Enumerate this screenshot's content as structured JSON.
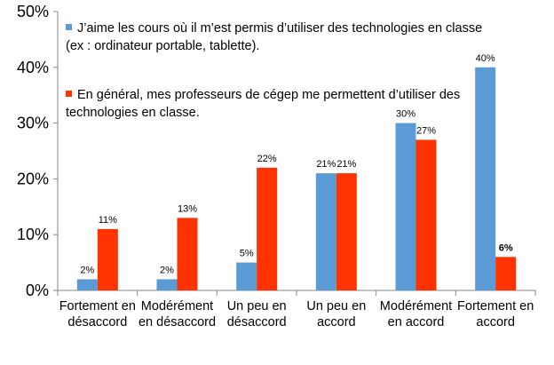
{
  "chart_data": {
    "type": "bar",
    "categories": [
      [
        "Fortement en",
        "désaccord"
      ],
      [
        "Modérément",
        "en désaccord"
      ],
      [
        "Un peu en",
        "désaccord"
      ],
      [
        "Un peu en",
        "accord"
      ],
      [
        "Modérément",
        "en accord"
      ],
      [
        "Fortement en",
        "accord"
      ]
    ],
    "series": [
      {
        "name": "J’aime les cours où il m’est permis d’utiliser des technologies en classe (ex : ordinateur portable, tablette).",
        "values": [
          2,
          2,
          5,
          21,
          30,
          40
        ],
        "labels": [
          "2%",
          "2%",
          "5%",
          "21%",
          "30%",
          "40%"
        ],
        "color": "#5B9BD5"
      },
      {
        "name": "En général, mes professeurs de cégep me permettent d’utiliser des technologies en classe.",
        "values": [
          11,
          13,
          22,
          21,
          27,
          6
        ],
        "labels": [
          "11%",
          "13%",
          "22%",
          "21%",
          "27%",
          "6%"
        ],
        "color": "#FF3300"
      }
    ],
    "yticks": [
      "0%",
      "10%",
      "20%",
      "30%",
      "40%",
      "50%"
    ],
    "ylim": [
      0,
      50
    ],
    "title": "",
    "xlabel": "",
    "ylabel": "",
    "grid": false,
    "legend_position": "top-left"
  }
}
